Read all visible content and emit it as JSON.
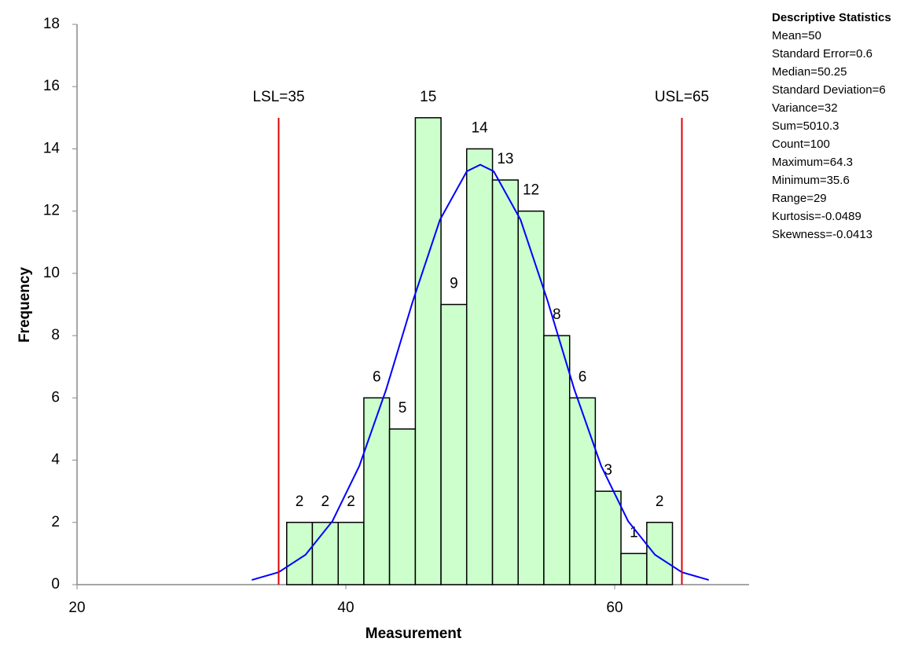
{
  "chart_data": {
    "type": "histogram",
    "x_label": "Measurement",
    "y_label": "Frequency",
    "bins": [
      35.6,
      37.51,
      39.43,
      41.34,
      43.25,
      45.17,
      47.08,
      48.99,
      50.91,
      52.82,
      54.73,
      56.65,
      58.56,
      60.47,
      62.39,
      64.3
    ],
    "values": [
      2,
      2,
      2,
      6,
      5,
      15,
      9,
      14,
      13,
      12,
      8,
      6,
      3,
      1,
      2
    ],
    "color": "#ccffcc",
    "edge_color": "#000000",
    "xlim": [
      20,
      70
    ],
    "xticks": [
      20,
      40,
      60
    ],
    "ylim": [
      0,
      18
    ],
    "yticks": [
      0,
      2,
      4,
      6,
      8,
      10,
      12,
      14,
      16,
      18
    ],
    "curve": {
      "color": "#0000ff",
      "x": [
        33,
        35,
        37,
        39,
        41,
        43,
        45,
        47,
        49,
        50,
        51,
        53,
        55,
        57,
        59,
        61,
        63,
        65,
        67
      ],
      "values": [
        0.15,
        0.4,
        0.96,
        2.04,
        3.81,
        6.27,
        9.13,
        11.72,
        13.28,
        13.49,
        13.28,
        11.72,
        9.13,
        6.27,
        3.81,
        2.04,
        0.96,
        0.4,
        0.15
      ]
    },
    "spec_limits": [
      {
        "label": "LSL=35",
        "value": 35,
        "color": "#e00000"
      },
      {
        "label": "USL=65",
        "value": 65,
        "color": "#e00000"
      }
    ],
    "stats_title": "Descriptive Statistics",
    "stats": [
      "Mean=50",
      "Standard Error=0.6",
      "Median=50.25",
      "Standard Deviation=6",
      "Variance=32",
      "Sum=5010.3",
      "Count=100",
      "Maximum=64.3",
      "Minimum=35.6",
      "Range=29",
      "Kurtosis=-0.0489",
      "Skewness=-0.0413"
    ]
  }
}
